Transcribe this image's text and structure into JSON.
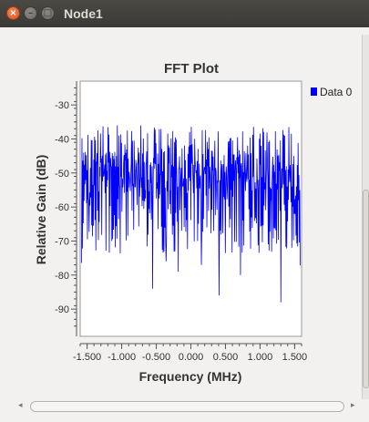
{
  "window": {
    "title": "Node1"
  },
  "window_buttons": {
    "close": "×",
    "minimize": "–",
    "maximize": "□"
  },
  "scrollbars": {
    "left_arrow": "◂",
    "right_arrow": "▸"
  },
  "chart_data": {
    "type": "line",
    "title": "FFT Plot",
    "xlabel": "Frequency (MHz)",
    "ylabel": "Relative Gain (dB)",
    "xlim": [
      -1.6,
      1.6
    ],
    "ylim": [
      -98,
      -23
    ],
    "xticks": [
      -1.5,
      -1.0,
      -0.5,
      0.0,
      0.5,
      1.0,
      1.5
    ],
    "xtick_labels": [
      "-1.500",
      "-1.000",
      "-0.500",
      "0.000",
      "0.500",
      "1.000",
      "1.500"
    ],
    "yticks": [
      -30,
      -40,
      -50,
      -60,
      -70,
      -80,
      -90
    ],
    "ytick_labels": [
      "-30",
      "-40",
      "-50",
      "-60",
      "-70",
      "-80",
      "-90"
    ],
    "grid": false,
    "legend_position": "top-right",
    "series": [
      {
        "name": "Data 0",
        "color": "#0000ff",
        "noise_band_db": [
          -75,
          -36
        ],
        "dips": [
          {
            "x": -0.55,
            "y": -84
          },
          {
            "x": -0.36,
            "y": -76
          },
          {
            "x": -0.18,
            "y": -79
          },
          {
            "x": 0.15,
            "y": -77
          },
          {
            "x": 0.72,
            "y": -80
          },
          {
            "x": 1.3,
            "y": -88
          },
          {
            "x": 0.41,
            "y": -86
          }
        ]
      }
    ]
  }
}
